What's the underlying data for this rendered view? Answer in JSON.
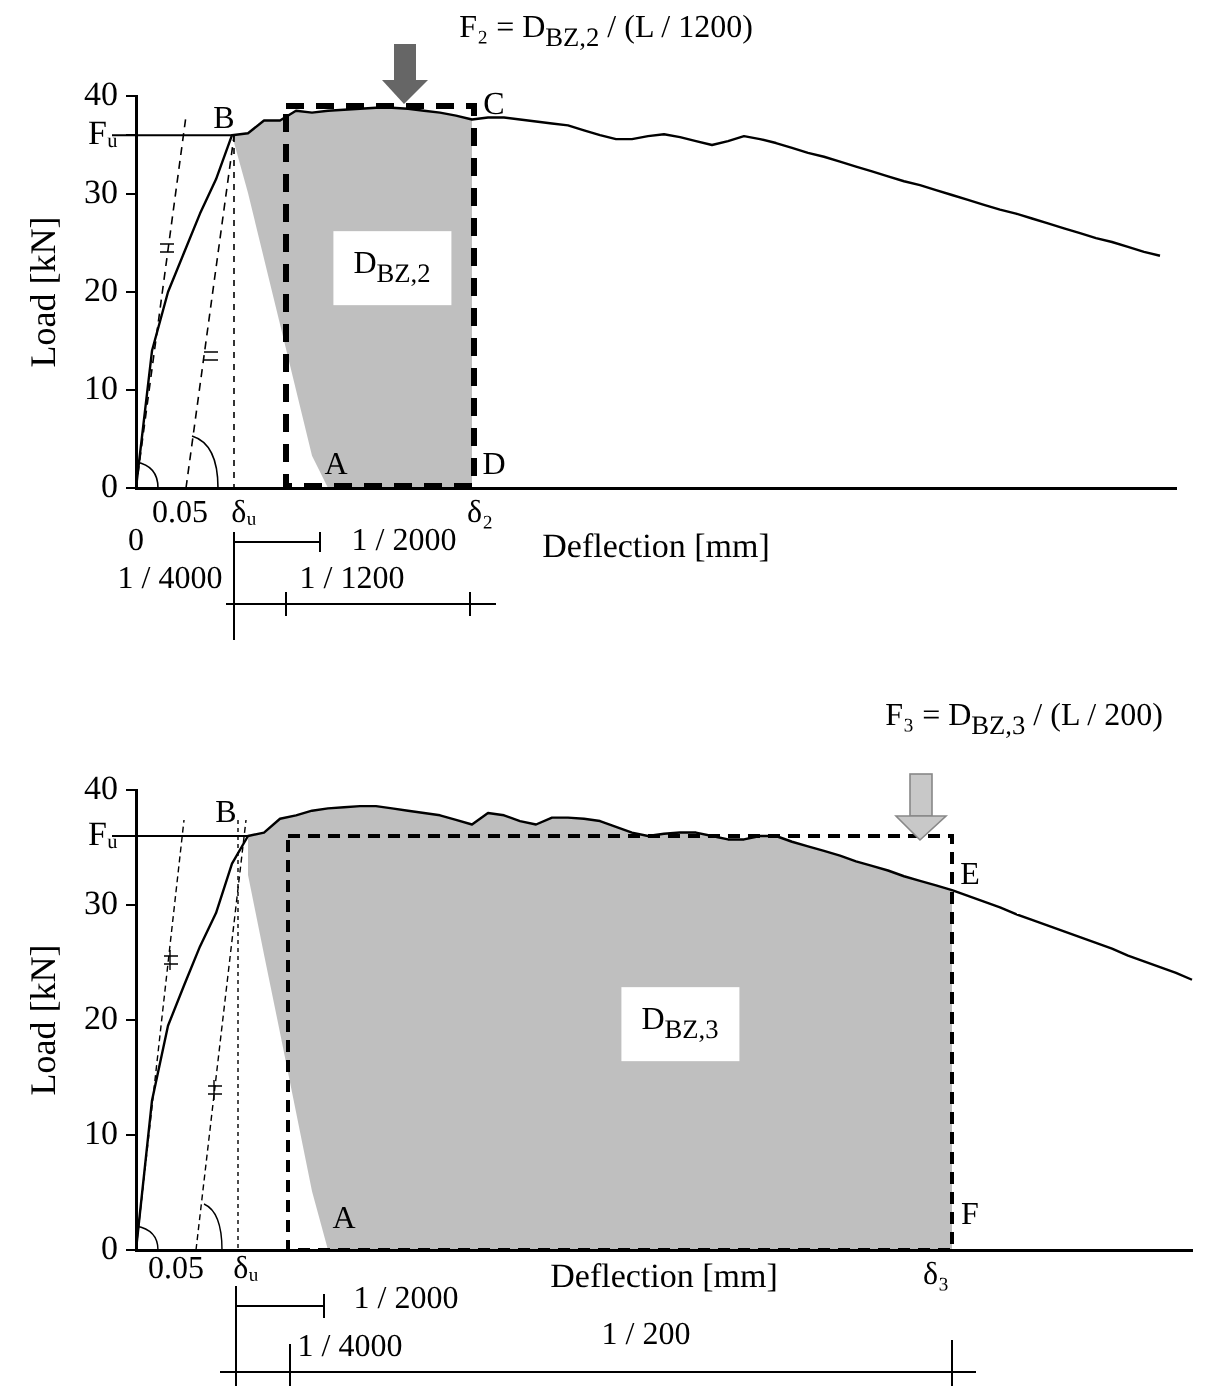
{
  "chart_data": [
    {
      "type": "line",
      "xlabel": "Deflection [mm]",
      "ylabel": "Load [kN]",
      "categories": [
        null,
        null,
        null,
        null,
        null,
        null,
        null,
        null,
        null,
        null,
        null,
        null,
        null,
        null,
        null,
        null,
        null,
        null,
        null,
        null,
        null,
        null,
        null,
        null,
        null,
        null,
        null,
        null,
        null,
        null,
        null,
        null,
        null,
        null,
        null,
        null,
        null,
        null,
        null,
        null,
        null,
        null,
        null,
        null,
        null,
        null,
        null,
        null,
        null,
        null,
        null,
        null,
        null,
        null,
        null,
        null,
        null,
        null,
        null,
        null,
        null,
        null,
        null,
        null,
        null,
        null
      ],
      "series": [
        {
          "color": "#000000",
          "values": [
            0,
            14,
            20,
            24,
            28,
            31.5,
            36,
            36.2,
            37.5,
            37.5,
            38.5,
            38.3,
            38.5,
            38.6,
            38.7,
            38.8,
            38.8,
            38.7,
            38.5,
            38.3,
            38,
            37.6,
            37.8,
            37.8,
            37.6,
            37.4,
            37.2,
            37,
            36.5,
            36,
            35.6,
            35.6,
            35.9,
            36.1,
            35.8,
            35.4,
            35,
            35.4,
            35.9,
            35.6,
            35.2,
            34.7,
            34.2,
            33.8,
            33.3,
            32.8,
            32.3,
            31.8,
            31.3,
            30.9,
            30.4,
            29.9,
            29.4,
            28.9,
            28.4,
            28,
            27.5,
            27,
            26.5,
            26,
            25.5,
            25.1,
            24.6,
            24.1,
            23.7,
            null
          ],
          "upper": [
            null,
            null,
            null,
            null,
            null,
            null,
            36,
            36.2,
            37.5,
            37.5,
            38.5,
            38.3,
            38.5,
            38.6,
            38.7,
            38.8,
            38.8,
            38.7,
            38.5,
            38.3,
            38,
            37.6,
            null,
            null,
            null,
            null,
            null,
            null,
            null,
            null,
            null,
            null,
            null,
            null,
            null,
            null,
            null,
            null,
            null,
            null,
            null,
            null,
            null,
            null,
            null,
            null,
            null,
            null,
            null,
            null,
            null,
            null,
            null,
            null,
            null,
            null,
            null,
            null,
            null,
            null,
            null,
            null,
            null,
            null,
            null,
            null
          ],
          "lower": [
            null,
            null,
            null,
            null,
            null,
            null,
            36,
            30.1,
            23.4,
            16.7,
            10,
            3.3,
            0,
            0,
            0,
            0,
            0,
            0,
            0,
            0,
            0,
            0,
            null,
            null,
            null,
            null,
            null,
            null,
            null,
            null,
            null,
            null,
            null,
            null,
            null,
            null,
            null,
            null,
            null,
            null,
            null,
            null,
            null,
            null,
            null,
            null,
            null,
            null,
            null,
            null,
            null,
            null,
            null,
            null,
            null,
            null,
            null,
            null,
            null,
            null,
            null,
            null,
            null,
            null,
            null,
            null
          ]
        }
      ],
      "ylim": [
        0,
        40
      ],
      "yticks": [
        0,
        10,
        20,
        30,
        {
          "value": 36,
          "label": "Fᵤ"
        },
        40
      ],
      "ref_lines": [
        {
          "axis": "y",
          "value": 36
        }
      ],
      "annotations": [
        "F₂ = D$_{BZ,2}$ / (L / 1200)",
        "B",
        "C",
        "D$_{BZ,2}$",
        "A",
        "D",
        "0.05",
        "δᵤ",
        "δ₂",
        "0",
        "1 / 2000",
        "1 / 4000",
        "1 / 1200"
      ],
      "grid": false,
      "legend": false,
      "tick_labels": "y",
      "marker": "none",
      "line_style": "solid"
    },
    {
      "type": "line",
      "xlabel": "Deflection [mm]",
      "ylabel": "Load [kN]",
      "categories": [
        null,
        null,
        null,
        null,
        null,
        null,
        null,
        null,
        null,
        null,
        null,
        null,
        null,
        null,
        null,
        null,
        null,
        null,
        null,
        null,
        null,
        null,
        null,
        null,
        null,
        null,
        null,
        null,
        null,
        null,
        null,
        null,
        null,
        null,
        null,
        null,
        null,
        null,
        null,
        null,
        null,
        null,
        null,
        null,
        null,
        null,
        null,
        null,
        null,
        null,
        null,
        null,
        null,
        null,
        null,
        null,
        null,
        null,
        null,
        null,
        null,
        null,
        null,
        null,
        null,
        null,
        null
      ],
      "series": [
        {
          "color": "#000000",
          "values": [
            0,
            13,
            19.5,
            23,
            26.4,
            29.3,
            33.6,
            36,
            36.3,
            37.5,
            37.8,
            38.2,
            38.4,
            38.5,
            38.6,
            38.6,
            38.4,
            38.2,
            38,
            37.8,
            37.4,
            37,
            38,
            37.8,
            37.3,
            37,
            37.6,
            37.6,
            37.5,
            37.3,
            36.8,
            36.3,
            36,
            36.2,
            36.3,
            36.3,
            36,
            35.7,
            35.7,
            36,
            36,
            35.5,
            35.1,
            34.7,
            34.3,
            33.8,
            33.4,
            33,
            32.5,
            32.1,
            31.7,
            31.3,
            30.8,
            30.3,
            29.8,
            29.2,
            28.7,
            28.2,
            27.7,
            27.2,
            26.7,
            26.2,
            25.6,
            25.1,
            24.6,
            24.1,
            23.5
          ],
          "upper": [
            null,
            null,
            null,
            null,
            null,
            null,
            null,
            36,
            36.3,
            37.5,
            37.8,
            38.2,
            38.4,
            38.5,
            38.6,
            38.6,
            38.4,
            38.2,
            38,
            37.8,
            37.4,
            37,
            38,
            37.8,
            37.3,
            37,
            37.6,
            37.6,
            37.5,
            37.3,
            36.8,
            36.3,
            36,
            36.2,
            36.3,
            36.3,
            36,
            35.7,
            35.7,
            36,
            36,
            35.5,
            35.1,
            34.7,
            34.3,
            33.8,
            33.4,
            33,
            32.5,
            32.1,
            31.7,
            31.3,
            null,
            null,
            null,
            null,
            null,
            null,
            null,
            null,
            null,
            null,
            null,
            null,
            null,
            null,
            null
          ],
          "lower": [
            null,
            null,
            null,
            null,
            null,
            null,
            null,
            32.6,
            25.7,
            18.9,
            12,
            5.1,
            0,
            0,
            0,
            0,
            0,
            0,
            0,
            0,
            0,
            0,
            0,
            0,
            0,
            0,
            0,
            0,
            0,
            0,
            0,
            0,
            0,
            0,
            0,
            0,
            0,
            0,
            0,
            0,
            0,
            0,
            0,
            0,
            0,
            0,
            0,
            0,
            0,
            0,
            0,
            0,
            null,
            null,
            null,
            null,
            null,
            null,
            null,
            null,
            null,
            null,
            null,
            null,
            null,
            null,
            null
          ]
        }
      ],
      "ylim": [
        0,
        40
      ],
      "yticks": [
        0,
        10,
        20,
        30,
        {
          "value": 36,
          "label": "Fᵤ"
        },
        40
      ],
      "ref_lines": [
        {
          "axis": "y",
          "value": 36
        }
      ],
      "annotations": [
        "F₃ = D$_{BZ,3}$ / (L / 200)",
        "B",
        "E",
        "D$_{BZ,3}$",
        "A",
        "F",
        "0.05",
        "δᵤ",
        "δ₃",
        "1 / 2000",
        "1 / 4000",
        "1 / 200"
      ],
      "grid": false,
      "legend": false,
      "tick_labels": "y",
      "marker": "none",
      "line_style": "solid"
    }
  ]
}
